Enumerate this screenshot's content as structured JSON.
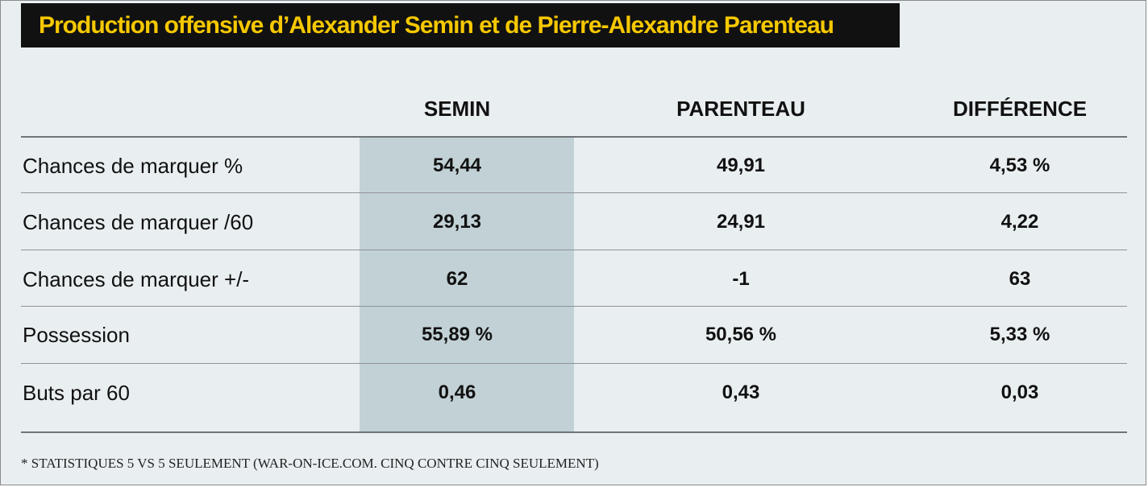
{
  "title": "Production offensive d’Alexander Semin et de Pierre-Alexandre Parenteau",
  "colors": {
    "title_background": "#111111",
    "title_text": "#f6c800",
    "panel_background": "#e9eef1",
    "highlight_column": "#c2d1d5"
  },
  "chart_data": {
    "type": "table",
    "columns": [
      "SEMIN",
      "PARENTEAU",
      "DIFFÉRENCE"
    ],
    "highlighted_column": "SEMIN",
    "rows": [
      {
        "label": "Chances de marquer %",
        "values": [
          "54,44",
          "49,91",
          "4,53 %"
        ]
      },
      {
        "label": "Chances de marquer /60",
        "values": [
          "29,13",
          "24,91",
          "4,22"
        ]
      },
      {
        "label": "Chances de marquer +/-",
        "values": [
          "62",
          "-1",
          "63"
        ]
      },
      {
        "label": "Possession",
        "values": [
          "55,89 %",
          "50,56 %",
          "5,33 %"
        ]
      },
      {
        "label": "Buts par 60",
        "values": [
          "0,46",
          "0,43",
          "0,03"
        ]
      }
    ]
  },
  "footnote": "* STATISTIQUES 5 VS 5 SEULEMENT (WAR-ON-ICE.COM. CINQ CONTRE CINQ SEULEMENT)"
}
